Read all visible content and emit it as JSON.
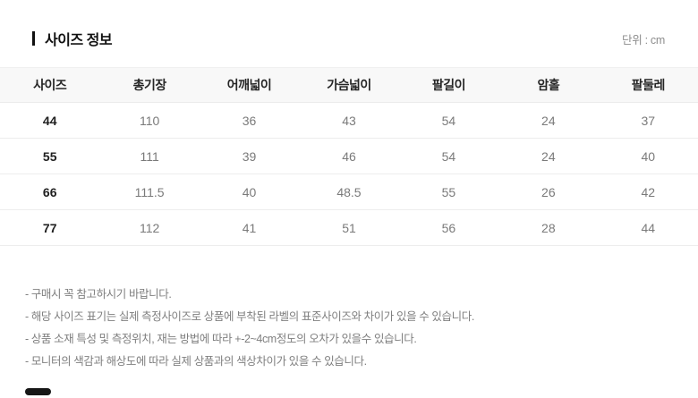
{
  "page": {
    "title": "사이즈 정보",
    "unit_label": "단위 : cm"
  },
  "size_table": {
    "columns": [
      "사이즈",
      "총기장",
      "어깨넓이",
      "가슴넓이",
      "팔길이",
      "암홀",
      "팔둘레"
    ],
    "rows": [
      {
        "size": "44",
        "values": [
          "110",
          "36",
          "43",
          "54",
          "24",
          "37"
        ]
      },
      {
        "size": "55",
        "values": [
          "111",
          "39",
          "46",
          "54",
          "24",
          "40"
        ]
      },
      {
        "size": "66",
        "values": [
          "111.5",
          "40",
          "48.5",
          "55",
          "26",
          "42"
        ]
      },
      {
        "size": "77",
        "values": [
          "112",
          "41",
          "51",
          "56",
          "28",
          "44"
        ]
      }
    ]
  },
  "notes": [
    "- 구매시 꼭 참고하시기 바랍니다.",
    "- 해당 사이즈 표기는 실제 측정사이즈로 상품에 부착된 라벨의 표준사이즈와 차이가 있을 수 있습니다.",
    "- 상품 소재 특성 및 측정위치, 재는 방법에 따라 +-2~4cm정도의 오차가 있을수 있습니다.",
    "- 모니터의 색감과 해상도에 따라 실제 상품과의 색상차이가 있을 수 있습니다."
  ],
  "colors": {
    "title_marker": "#111111",
    "header_bg": "#f8f8f8",
    "row_border": "#ededed",
    "size_text": "#1f1f1f",
    "value_text": "#7a7a7a",
    "note_text": "#7f7f7f",
    "unit_text": "#8c8c8c"
  }
}
